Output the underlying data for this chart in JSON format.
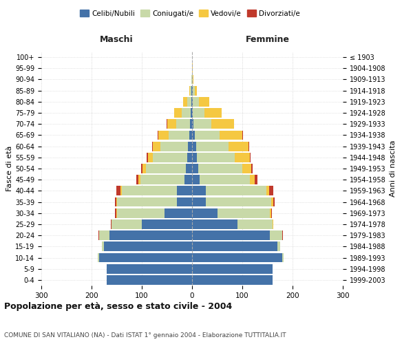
{
  "age_groups": [
    "0-4",
    "5-9",
    "10-14",
    "15-19",
    "20-24",
    "25-29",
    "30-34",
    "35-39",
    "40-44",
    "45-49",
    "50-54",
    "55-59",
    "60-64",
    "65-69",
    "70-74",
    "75-79",
    "80-84",
    "85-89",
    "90-94",
    "95-99",
    "100+"
  ],
  "birth_years": [
    "1999-2003",
    "1994-1998",
    "1989-1993",
    "1984-1988",
    "1979-1983",
    "1974-1978",
    "1969-1973",
    "1964-1968",
    "1959-1963",
    "1954-1958",
    "1949-1953",
    "1944-1948",
    "1939-1943",
    "1934-1938",
    "1929-1933",
    "1924-1928",
    "1919-1923",
    "1914-1918",
    "1909-1913",
    "1904-1908",
    "≤ 1903"
  ],
  "male_celibi": [
    170,
    170,
    185,
    175,
    165,
    100,
    55,
    30,
    30,
    15,
    12,
    10,
    8,
    5,
    4,
    3,
    2,
    1,
    0,
    0,
    0
  ],
  "male_coniugati": [
    0,
    0,
    2,
    5,
    20,
    60,
    95,
    120,
    110,
    88,
    80,
    68,
    55,
    42,
    28,
    18,
    8,
    3,
    1,
    0,
    0
  ],
  "male_vedovi": [
    0,
    0,
    0,
    0,
    0,
    0,
    1,
    1,
    2,
    4,
    6,
    10,
    15,
    20,
    18,
    15,
    8,
    2,
    0,
    0,
    0
  ],
  "male_divorziati": [
    0,
    0,
    0,
    0,
    1,
    1,
    2,
    3,
    8,
    4,
    3,
    2,
    2,
    1,
    1,
    0,
    0,
    0,
    0,
    0,
    0
  ],
  "fem_celibi": [
    160,
    160,
    180,
    170,
    155,
    90,
    50,
    28,
    28,
    15,
    12,
    10,
    8,
    5,
    3,
    2,
    2,
    1,
    0,
    0,
    0
  ],
  "fem_coniugati": [
    0,
    0,
    2,
    6,
    25,
    70,
    105,
    130,
    120,
    100,
    88,
    75,
    65,
    50,
    35,
    22,
    12,
    4,
    1,
    0,
    0
  ],
  "fem_vedovi": [
    0,
    0,
    0,
    0,
    0,
    1,
    2,
    3,
    5,
    10,
    18,
    30,
    40,
    45,
    45,
    35,
    20,
    5,
    2,
    1,
    0
  ],
  "fem_divorziati": [
    0,
    0,
    0,
    0,
    1,
    1,
    2,
    4,
    8,
    5,
    3,
    2,
    1,
    1,
    0,
    0,
    0,
    0,
    0,
    0,
    0
  ],
  "color_celibi": "#4472a8",
  "color_coniugati": "#c8d9a8",
  "color_vedovi": "#f5c842",
  "color_divorziati": "#c0392b",
  "title": "Popolazione per età, sesso e stato civile - 2004",
  "subtitle": "COMUNE DI SAN VITALIANO (NA) - Dati ISTAT 1° gennaio 2004 - Elaborazione TUTTITALIA.IT",
  "xlabel_left": "Maschi",
  "xlabel_right": "Femmine",
  "ylabel_left": "Fasce di età",
  "ylabel_right": "Anni di nascita",
  "xlim": 300,
  "background_color": "#ffffff",
  "grid_color": "#cccccc"
}
